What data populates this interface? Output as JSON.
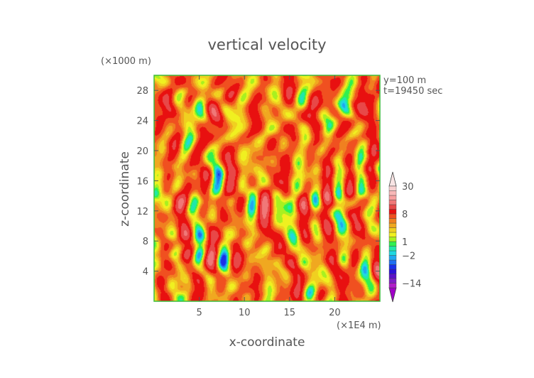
{
  "chart_data": {
    "type": "heatmap",
    "title": "vertical velocity",
    "xlabel": "x-coordinate",
    "ylabel": "z-coordinate",
    "x_unit": "(×1E4 m)",
    "y_unit": "(×1000 m)",
    "annotations": [
      "y=100 m",
      "t=19450 sec"
    ],
    "xlim": [
      0,
      25
    ],
    "ylim": [
      0,
      30
    ],
    "x_ticks": [
      5,
      10,
      15,
      20
    ],
    "y_ticks": [
      4,
      8,
      12,
      16,
      20,
      24,
      28
    ],
    "field_value_range": [
      -14,
      30
    ],
    "colorbar": {
      "levels": [
        -20,
        -17,
        -14,
        -11,
        -8,
        -6,
        -4,
        -3,
        -2,
        -1,
        0,
        1,
        2,
        3,
        4,
        5,
        6,
        8,
        11,
        14,
        18,
        22,
        26,
        30,
        34
      ],
      "colors": [
        "#a000c8",
        "#b01ec8",
        "#7d1ec8",
        "#5a10c8",
        "#2a10d8",
        "#1a30e8",
        "#2070f0",
        "#20a8f0",
        "#20d8e0",
        "#20e8a8",
        "#30f050",
        "#a8f020",
        "#f0f020",
        "#f0d020",
        "#f0a820",
        "#f08020",
        "#f05020",
        "#e81010",
        "#e84848",
        "#f07878",
        "#f8a0a0",
        "#f8b8b8",
        "#f8d0d0",
        "#f8e4e4"
      ],
      "tick_labels": [
        {
          "value": 30,
          "text": "30"
        },
        {
          "value": 8,
          "text": "8"
        },
        {
          "value": 1,
          "text": "1"
        },
        {
          "value": -2,
          "text": "−2"
        },
        {
          "value": -14,
          "text": "−14"
        }
      ]
    }
  }
}
